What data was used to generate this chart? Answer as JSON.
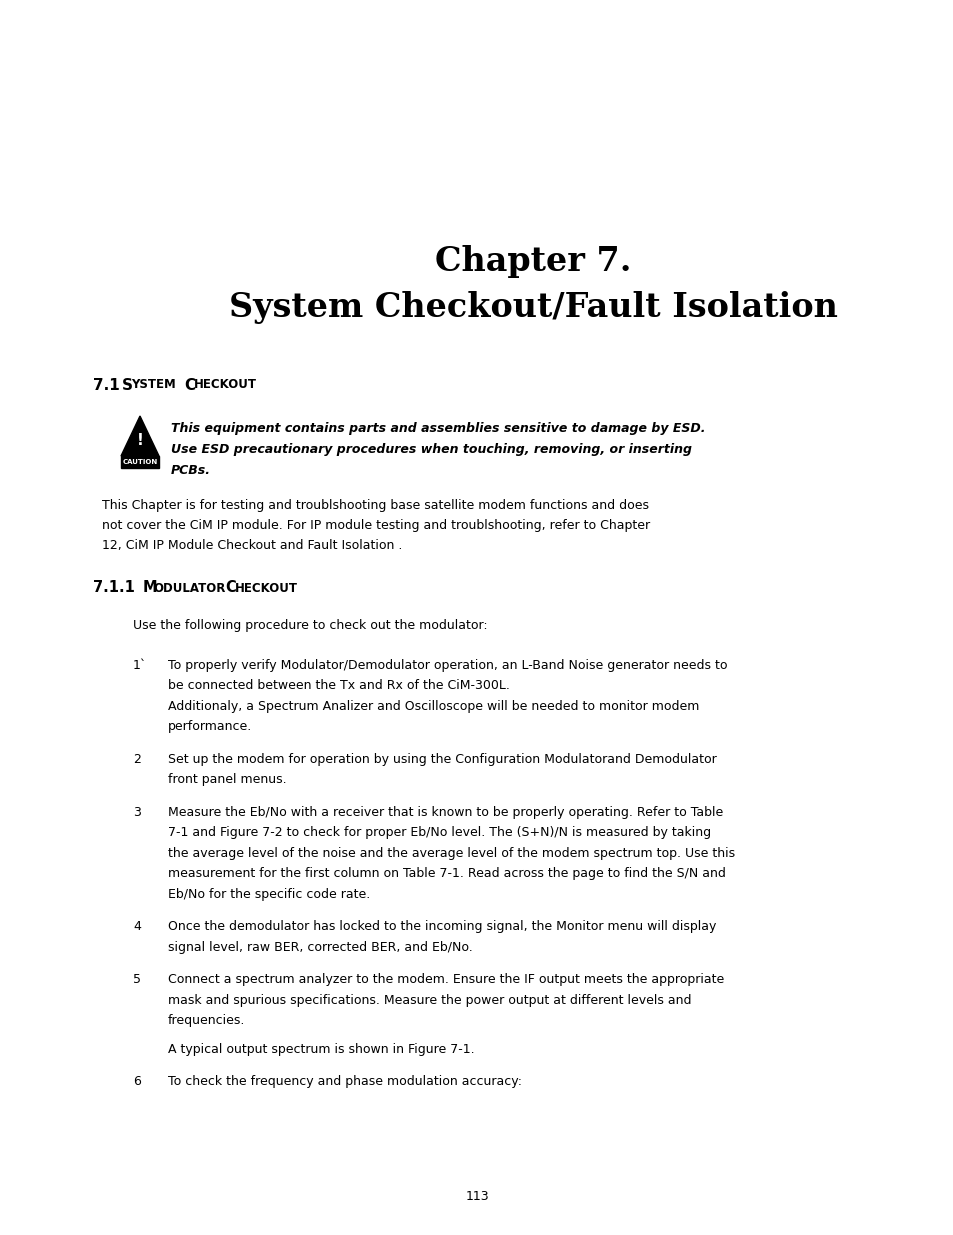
{
  "bg_color": "#ffffff",
  "text_color": "#000000",
  "page_width": 9.54,
  "page_height": 12.35,
  "chapter_title_line1": "Chapter 7.",
  "chapter_title_line2": "System Checkout/Fault Isolation",
  "caution_line1": "This equipment contains parts and assemblies sensitive to damage by ESD.",
  "caution_line2": "Use ESD precautionary procedures when touching, removing, or inserting",
  "caution_line3": "PCBs.",
  "body_para1_line1": "This Chapter is for testing and troublshooting base satellite modem functions and does",
  "body_para1_line2": "not cover the CiM IP module. For IP module testing and troublshooting, refer to Chapter",
  "body_para1_line3": "12, CiM IP Module Checkout and Fault Isolation .",
  "intro_text": "Use the following procedure to check out the modulator:",
  "item1_num": "1`",
  "item1_line1": "To properly verify Modulator/Demodulator operation, an L-Band Noise generator needs to",
  "item1_line2": "be connected between the Tx and Rx of the CiM-300L.",
  "item1_sub_line1": "Additionaly, a Spectrum Analizer and Oscilloscope will be needed to monitor modem",
  "item1_sub_line2": "performance.",
  "item2_num": "2",
  "item2_line1": "Set up the modem for operation by using the Configuration Modulatorand Demodulator",
  "item2_line2": "front panel menus.",
  "item3_num": "3",
  "item3_line1": "Measure the Eb/No with a receiver that is known to be properly operating. Refer to Table",
  "item3_line2": "7-1 and Figure 7-2 to check for proper Eb/No level. The (S+N)/N is measured by taking",
  "item3_line3": "the average level of the noise and the average level of the modem spectrum top. Use this",
  "item3_line4": "measurement for the first column on Table 7-1. Read across the page to find the S/N and",
  "item3_line5": "Eb/No for the specific code rate.",
  "item4_num": "4",
  "item4_line1": "Once the demodulator has locked to the incoming signal, the Monitor menu will display",
  "item4_line2": "signal level, raw BER, corrected BER, and Eb/No.",
  "item5_num": "5",
  "item5_line1": "Connect a spectrum analyzer to the modem. Ensure the IF output meets the appropriate",
  "item5_line2": "mask and spurious specifications. Measure the power output at different levels and",
  "item5_line3": "frequencies.",
  "item5_sub": "A typical output spectrum is shown in Figure 7-1.",
  "item6_num": "6",
  "item6_line1": "To check the frequency and phase modulation accuracy:",
  "page_number": "113"
}
